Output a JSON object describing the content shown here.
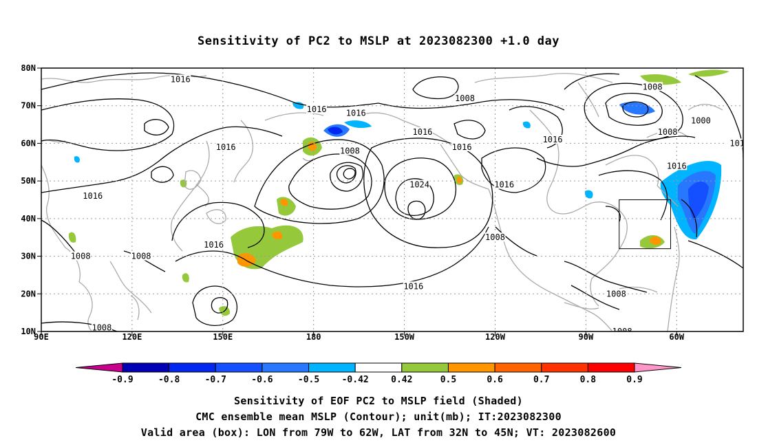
{
  "title": "Sensitivity of PC2 to MSLP at 2023082300 +1.0 day",
  "map": {
    "lon_ticks": [
      "90E",
      "120E",
      "150E",
      "180",
      "150W",
      "120W",
      "90W",
      "60W"
    ],
    "lat_ticks": [
      "80N",
      "70N",
      "60N",
      "50N",
      "40N",
      "30N",
      "20N",
      "10N"
    ],
    "lon_range": [
      90,
      322
    ],
    "lat_range": [
      10,
      80
    ],
    "gridlines": "dotted",
    "contour_labels": [
      {
        "text": "1016",
        "lon": 136,
        "lat": 77
      },
      {
        "text": "1016",
        "lon": 181,
        "lat": 69
      },
      {
        "text": "1016",
        "lon": 194,
        "lat": 68
      },
      {
        "text": "1008",
        "lon": 230,
        "lat": 72
      },
      {
        "text": "1016",
        "lon": 216,
        "lat": 63
      },
      {
        "text": "1016",
        "lon": 229,
        "lat": 59
      },
      {
        "text": "1016",
        "lon": 259,
        "lat": 61
      },
      {
        "text": "1008",
        "lon": 292,
        "lat": 75
      },
      {
        "text": "1000",
        "lon": 308,
        "lat": 66
      },
      {
        "text": "1008",
        "lon": 297,
        "lat": 63
      },
      {
        "text": "101",
        "lon": 320,
        "lat": 60
      },
      {
        "text": "1016",
        "lon": 151,
        "lat": 59
      },
      {
        "text": "1008",
        "lon": 192,
        "lat": 58
      },
      {
        "text": "1024",
        "lon": 215,
        "lat": 49
      },
      {
        "text": "1016",
        "lon": 243,
        "lat": 49
      },
      {
        "text": "1016",
        "lon": 300,
        "lat": 54
      },
      {
        "text": "1016",
        "lon": 107,
        "lat": 46
      },
      {
        "text": "1016",
        "lon": 147,
        "lat": 33
      },
      {
        "text": "1008",
        "lon": 240,
        "lat": 35
      },
      {
        "text": "1008",
        "lon": 103,
        "lat": 30
      },
      {
        "text": "1008",
        "lon": 123,
        "lat": 30
      },
      {
        "text": "1016",
        "lon": 213,
        "lat": 22
      },
      {
        "text": "1008",
        "lon": 282,
        "lat": 10
      },
      {
        "text": "1008",
        "lon": 110,
        "lat": 11
      },
      {
        "text": "1008",
        "lon": 280,
        "lat": 20
      }
    ],
    "valid_box": {
      "lon": [
        281,
        298
      ],
      "lat": [
        32,
        45
      ]
    }
  },
  "colorbar": {
    "labels": [
      "-0.9",
      "-0.8",
      "-0.7",
      "-0.6",
      "-0.5",
      "-0.42",
      "0.42",
      "0.5",
      "0.6",
      "0.7",
      "0.8",
      "0.9"
    ],
    "colors": [
      "#c8008c",
      "#0000b4",
      "#0028f0",
      "#1450ff",
      "#2878ff",
      "#00b4ff",
      "#ffffff",
      "#96c83c",
      "#ff9600",
      "#ff6400",
      "#ff3200",
      "#ff0000",
      "#ff96c8"
    ]
  },
  "footer": {
    "line1": "Sensitivity of EOF PC2 to MSLP field (Shaded)",
    "line2": "CMC ensemble mean MSLP (Contour); unit(mb); IT:2023082300",
    "line3": "Valid area (box): LON from 79W to 62W, LAT from 32N to 45N; VT: 2023082600"
  }
}
